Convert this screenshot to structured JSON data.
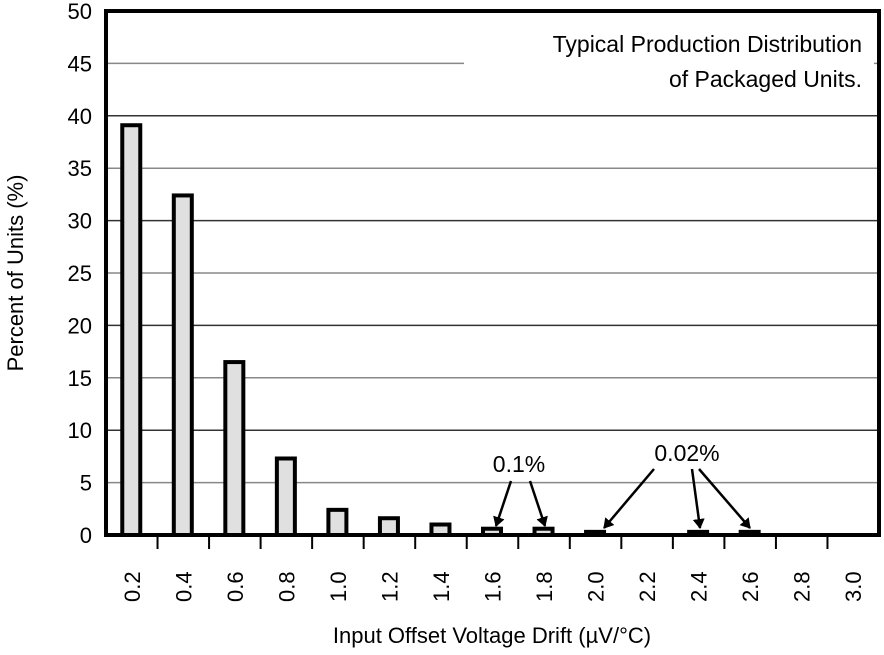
{
  "chart_data": {
    "type": "bar",
    "title": "",
    "xlabel": "Input Offset Voltage Drift (µV/°C)",
    "ylabel": "Percent of Units (%)",
    "ylim": [
      0,
      50
    ],
    "yticks": [
      0,
      5,
      10,
      15,
      20,
      25,
      30,
      35,
      40,
      45,
      50
    ],
    "grid": true,
    "categories": [
      "0.2",
      "0.4",
      "0.6",
      "0.8",
      "1.0",
      "1.2",
      "1.4",
      "1.6",
      "1.8",
      "2.0",
      "2.2",
      "2.4",
      "2.6",
      "2.8",
      "3.0"
    ],
    "values": [
      39.1,
      32.4,
      16.5,
      7.3,
      2.4,
      1.6,
      1.0,
      0.6,
      0.6,
      0.3,
      0,
      0.3,
      0.3,
      0,
      0
    ],
    "legend_text": [
      "Typical Production Distribution",
      "of Packaged Units."
    ],
    "annotations": [
      {
        "text": "0.1%",
        "points_to": [
          "1.6",
          "1.8"
        ]
      },
      {
        "text": "0.02%",
        "points_to": [
          "2.0",
          "2.4",
          "2.6"
        ]
      }
    ],
    "colors": {
      "bar_fill": "#e0e0e0",
      "bar_stroke": "#000000",
      "grid_dark": "#333333",
      "grid_light": "#888888"
    }
  }
}
